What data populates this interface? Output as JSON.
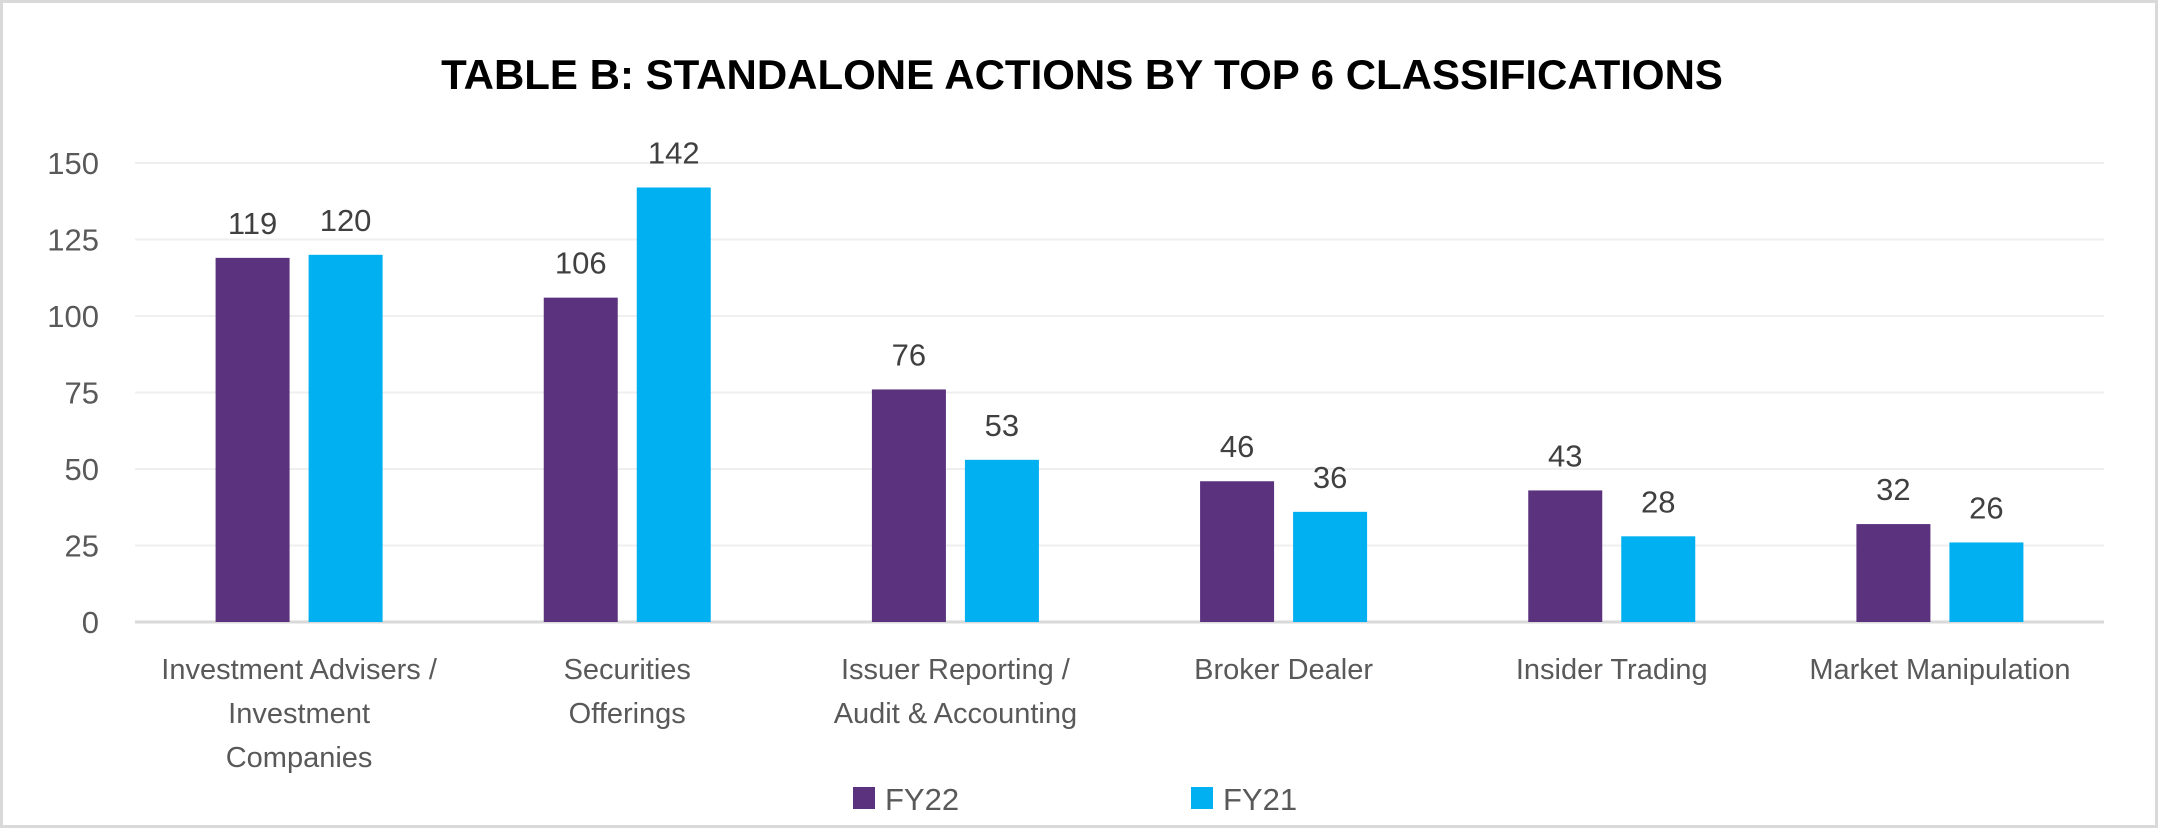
{
  "chart_data": {
    "type": "bar",
    "title": "TABLE B:  STANDALONE ACTIONS BY TOP 6 CLASSIFICATIONS",
    "xlabel": "",
    "ylabel": "",
    "ylim": [
      0,
      150
    ],
    "yticks": [
      0,
      25,
      50,
      75,
      100,
      125,
      150
    ],
    "grid": true,
    "legend_position": "bottom",
    "categories": [
      [
        "Investment Advisers /",
        "Investment",
        "Companies"
      ],
      [
        "Securities",
        "Offerings"
      ],
      [
        "Issuer Reporting /",
        "Audit & Accounting"
      ],
      [
        "Broker Dealer"
      ],
      [
        "Insider Trading"
      ],
      [
        "Market Manipulation"
      ]
    ],
    "series": [
      {
        "name": "FY22",
        "color": "#5b327d",
        "values": [
          119,
          106,
          76,
          46,
          43,
          32
        ]
      },
      {
        "name": "FY21",
        "color": "#00b0f0",
        "values": [
          120,
          142,
          53,
          36,
          28,
          26
        ]
      }
    ]
  }
}
